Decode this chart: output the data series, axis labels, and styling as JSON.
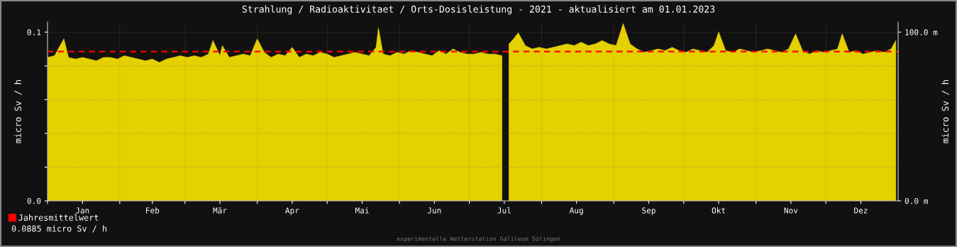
{
  "chart_data": {
    "type": "area",
    "title": "Strahlung / Radioaktivitaet / Orts-Dosisleistung - 2021 - aktualisiert am 01.01.2023",
    "ylabel": "micro Sv / h",
    "y2label": "micro Sv / h",
    "x": [
      "2021-01-01",
      "2021-01-04",
      "2021-01-08",
      "2021-01-10",
      "2021-01-13",
      "2021-01-16",
      "2021-01-19",
      "2021-01-22",
      "2021-01-25",
      "2021-01-28",
      "2021-01-31",
      "2021-02-03",
      "2021-02-06",
      "2021-02-09",
      "2021-02-12",
      "2021-02-15",
      "2021-02-18",
      "2021-02-21",
      "2021-02-24",
      "2021-02-27",
      "2021-03-02",
      "2021-03-05",
      "2021-03-08",
      "2021-03-11",
      "2021-03-13",
      "2021-03-16",
      "2021-03-17",
      "2021-03-20",
      "2021-03-23",
      "2021-03-26",
      "2021-03-29",
      "2021-04-01",
      "2021-04-04",
      "2021-04-07",
      "2021-04-10",
      "2021-04-13",
      "2021-04-16",
      "2021-04-19",
      "2021-04-22",
      "2021-04-25",
      "2021-04-28",
      "2021-05-01",
      "2021-05-04",
      "2021-05-07",
      "2021-05-10",
      "2021-05-13",
      "2021-05-16",
      "2021-05-19",
      "2021-05-22",
      "2021-05-23",
      "2021-05-25",
      "2021-05-28",
      "2021-05-31",
      "2021-06-03",
      "2021-06-06",
      "2021-06-09",
      "2021-06-12",
      "2021-06-15",
      "2021-06-18",
      "2021-06-21",
      "2021-06-24",
      "2021-06-27",
      "2021-06-30",
      "2021-07-03",
      "2021-07-06",
      "2021-07-09",
      "2021-07-12",
      "2021-07-15",
      "2021-07-17",
      "2021-07-18",
      "2021-07-20",
      "2021-07-22",
      "2021-07-25",
      "2021-07-28",
      "2021-07-31",
      "2021-08-03",
      "2021-08-06",
      "2021-08-09",
      "2021-08-12",
      "2021-08-15",
      "2021-08-18",
      "2021-08-21",
      "2021-08-24",
      "2021-08-27",
      "2021-08-30",
      "2021-09-02",
      "2021-09-05",
      "2021-09-08",
      "2021-09-11",
      "2021-09-14",
      "2021-09-17",
      "2021-09-20",
      "2021-09-23",
      "2021-09-26",
      "2021-09-29",
      "2021-10-02",
      "2021-10-05",
      "2021-10-08",
      "2021-10-11",
      "2021-10-14",
      "2021-10-16",
      "2021-10-19",
      "2021-10-22",
      "2021-10-25",
      "2021-10-28",
      "2021-10-31",
      "2021-11-03",
      "2021-11-06",
      "2021-11-09",
      "2021-11-12",
      "2021-11-15",
      "2021-11-18",
      "2021-11-21",
      "2021-11-24",
      "2021-11-27",
      "2021-11-30",
      "2021-12-03",
      "2021-12-06",
      "2021-12-08",
      "2021-12-11",
      "2021-12-14",
      "2021-12-17",
      "2021-12-20",
      "2021-12-23",
      "2021-12-26",
      "2021-12-29",
      "2021-12-31"
    ],
    "series": [
      {
        "color": "#e5d000",
        "values": [
          0.085,
          0.086,
          0.096,
          0.085,
          0.084,
          0.085,
          0.084,
          0.083,
          0.085,
          0.085,
          0.084,
          0.086,
          0.085,
          0.084,
          0.083,
          0.084,
          0.082,
          0.084,
          0.085,
          0.086,
          0.085,
          0.086,
          0.085,
          0.087,
          0.095,
          0.086,
          0.092,
          0.085,
          0.086,
          0.087,
          0.086,
          0.096,
          0.088,
          0.085,
          0.087,
          0.086,
          0.091,
          0.085,
          0.087,
          0.086,
          0.088,
          0.087,
          0.085,
          0.086,
          0.087,
          0.088,
          0.087,
          0.086,
          0.091,
          0.1025,
          0.087,
          0.086,
          0.088,
          0.087,
          0.089,
          0.088,
          0.087,
          0.086,
          0.089,
          0.087,
          0.09,
          0.088,
          0.087,
          0.087,
          0.088,
          0.087,
          0.087,
          0.086,
          null,
          0.093,
          0.096,
          0.0996,
          0.092,
          0.09,
          0.091,
          0.09,
          0.091,
          0.092,
          0.093,
          0.092,
          0.094,
          0.092,
          0.093,
          0.095,
          0.093,
          0.092,
          0.105,
          0.093,
          0.09,
          0.088,
          0.089,
          0.09,
          0.089,
          0.091,
          0.089,
          0.088,
          0.09,
          0.089,
          0.088,
          0.092,
          0.1,
          0.089,
          0.088,
          0.09,
          0.089,
          0.088,
          0.089,
          0.09,
          0.089,
          0.088,
          0.09,
          0.099,
          0.089,
          0.087,
          0.089,
          0.088,
          0.089,
          0.09,
          0.099,
          0.088,
          0.089,
          0.087,
          0.088,
          0.089,
          0.088,
          0.09,
          0.095
        ]
      }
    ],
    "xlim": [
      "2021-01-01",
      "2022-01-01"
    ],
    "xticks": [
      {
        "value": "2021-01-01",
        "label": null
      },
      {
        "value": "2021-01-16",
        "label": "Jan"
      },
      {
        "value": "2021-02-01",
        "label": null
      },
      {
        "value": "2021-02-15",
        "label": "Feb"
      },
      {
        "value": "2021-03-01",
        "label": null
      },
      {
        "value": "2021-03-16",
        "label": "Mär"
      },
      {
        "value": "2021-04-01",
        "label": null
      },
      {
        "value": "2021-04-16",
        "label": "Apr"
      },
      {
        "value": "2021-05-01",
        "label": null
      },
      {
        "value": "2021-05-16",
        "label": "Mai"
      },
      {
        "value": "2021-06-01",
        "label": null
      },
      {
        "value": "2021-06-16",
        "label": "Jun"
      },
      {
        "value": "2021-07-01",
        "label": null
      },
      {
        "value": "2021-07-16",
        "label": "Jul"
      },
      {
        "value": "2021-08-01",
        "label": null
      },
      {
        "value": "2021-08-16",
        "label": "Aug"
      },
      {
        "value": "2021-09-01",
        "label": null
      },
      {
        "value": "2021-09-16",
        "label": "Sep"
      },
      {
        "value": "2021-10-01",
        "label": null
      },
      {
        "value": "2021-10-16",
        "label": "Okt"
      },
      {
        "value": "2021-11-01",
        "label": null
      },
      {
        "value": "2021-11-16",
        "label": "Nov"
      },
      {
        "value": "2021-12-01",
        "label": null
      },
      {
        "value": "2021-12-16",
        "label": "Dez"
      }
    ],
    "ylim": [
      0,
      0.106
    ],
    "yticks": [
      {
        "value": 0,
        "label": "0.0"
      },
      {
        "value": 0.02,
        "label": null
      },
      {
        "value": 0.04,
        "label": null
      },
      {
        "value": 0.06,
        "label": null
      },
      {
        "value": 0.08,
        "label": null
      },
      {
        "value": 0.1,
        "label": "0.1"
      }
    ],
    "y2lim": [
      0,
      106
    ],
    "y2ticks": [
      {
        "value": 0,
        "label": "0.0 m"
      },
      {
        "value": 100,
        "label": "100.0 m"
      }
    ],
    "ref_lines": [
      {
        "axis": "y",
        "value": 0.0885,
        "label": "Jahresmittelwert",
        "color": "#ff0000",
        "line_style": "dashed"
      }
    ],
    "annotations": [
      "0.0885 micro Sv / h",
      "experimentelle Wetterstation Galileum Solingen"
    ],
    "grid": true,
    "legend": "bottom left"
  }
}
